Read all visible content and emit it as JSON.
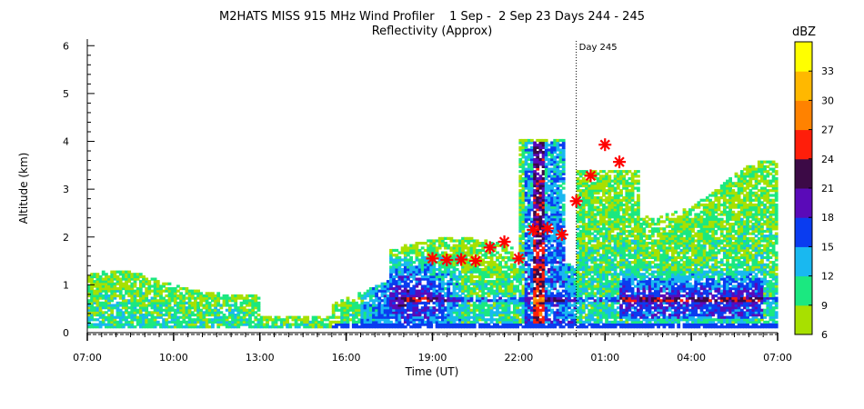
{
  "chart_data": {
    "type": "heatmap",
    "title": "M2HATS MISS 915 MHz Wind Profiler    1 Sep -  2 Sep 23 Days 244 - 245",
    "subtitle": "Reflectivity (Approx)",
    "xlabel": "Time (UT)",
    "ylabel": "Altitude (km)",
    "x_ticks": [
      "07:00",
      "10:00",
      "13:00",
      "16:00",
      "19:00",
      "22:00",
      "01:00",
      "04:00",
      "07:00"
    ],
    "x_tick_hours": [
      0,
      3,
      6,
      9,
      12,
      15,
      18,
      21,
      24
    ],
    "xlim_hours_since_0700": [
      0,
      24
    ],
    "y_ticks": [
      "0",
      "1",
      "2",
      "3",
      "4",
      "5",
      "6"
    ],
    "ylim": [
      0,
      6.1
    ],
    "day_marker": {
      "label": "Day 245",
      "hour": 17
    },
    "colorbar": {
      "label": "dBZ",
      "tick_labels": [
        "6",
        "9",
        "12",
        "15",
        "18",
        "21",
        "24",
        "27",
        "30",
        "33"
      ],
      "levels": [
        6,
        9,
        12,
        15,
        18,
        21,
        24,
        27,
        30,
        33,
        36
      ],
      "colors": [
        "#a8e000",
        "#1be880",
        "#19b8f0",
        "#0a3cf0",
        "#5a0ab8",
        "#3c0a46",
        "#ff1e0a",
        "#ff8200",
        "#ffb800",
        "#ffff00"
      ]
    },
    "markers": {
      "symbol": "asterisk",
      "color": "#ff0000",
      "points": [
        {
          "t": 12.0,
          "alt": 1.55
        },
        {
          "t": 12.5,
          "alt": 1.52
        },
        {
          "t": 13.0,
          "alt": 1.53
        },
        {
          "t": 13.5,
          "alt": 1.5
        },
        {
          "t": 14.0,
          "alt": 1.78
        },
        {
          "t": 14.5,
          "alt": 1.9
        },
        {
          "t": 15.0,
          "alt": 1.55
        },
        {
          "t": 15.5,
          "alt": 2.15
        },
        {
          "t": 16.0,
          "alt": 2.18
        },
        {
          "t": 16.5,
          "alt": 2.05
        },
        {
          "t": 17.0,
          "alt": 2.75
        },
        {
          "t": 17.5,
          "alt": 3.28
        },
        {
          "t": 18.0,
          "alt": 3.93
        },
        {
          "t": 18.5,
          "alt": 3.57
        }
      ]
    }
  }
}
